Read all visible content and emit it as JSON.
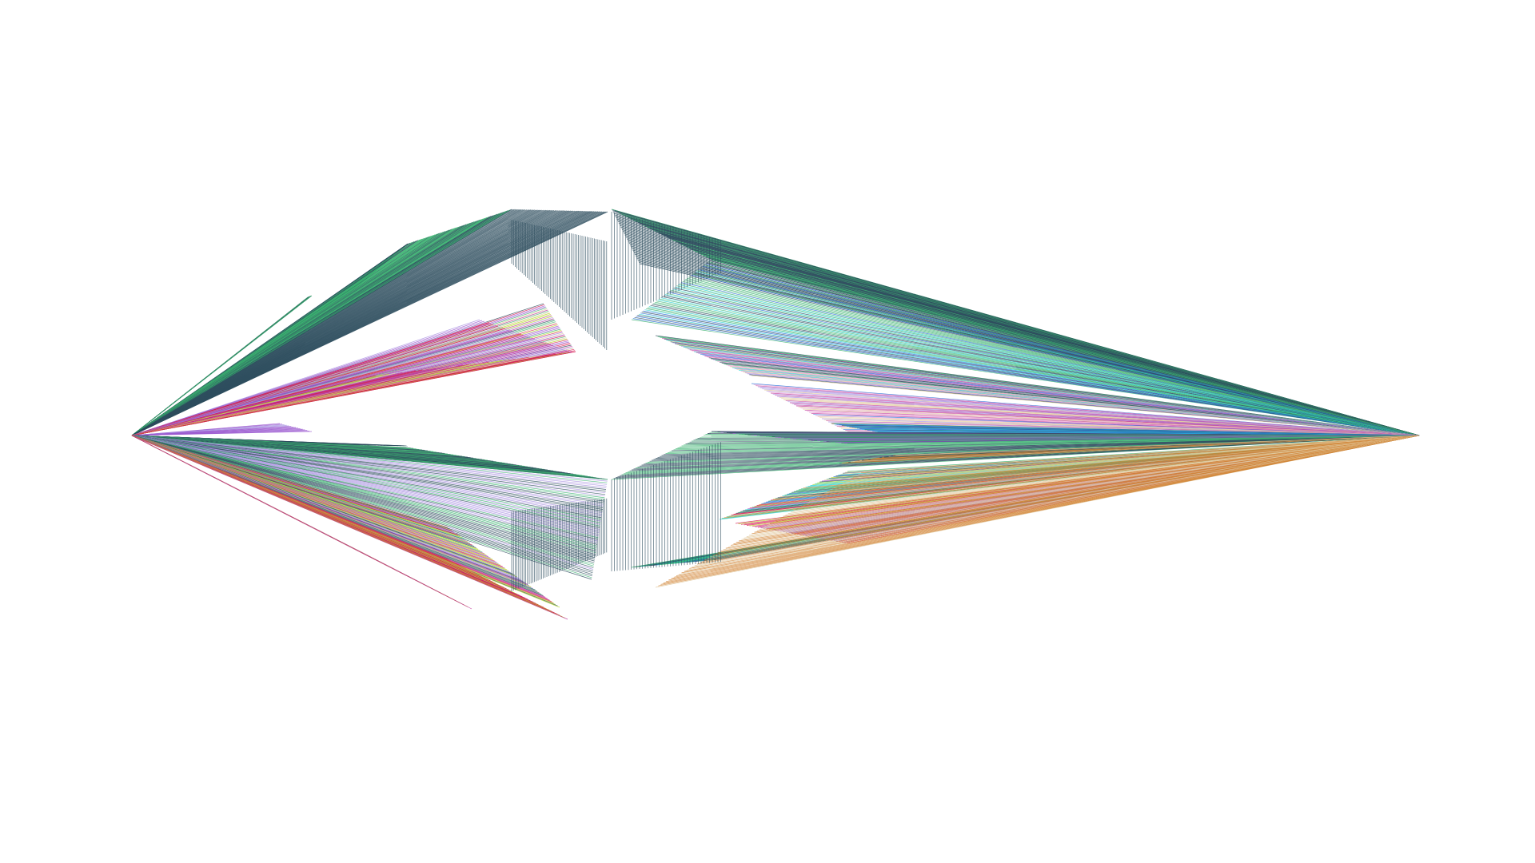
{
  "view": {
    "background": "#ffffff",
    "subject": "line-fan-arrowhead-visualization"
  },
  "palette": {
    "slate": "#2f4f5f",
    "green": "#3cb371",
    "purple": "#9b59d0",
    "magenta": "#c0399b",
    "crimson": "#d7164f",
    "orange": "#d2873a",
    "tan": "#e0c79a",
    "yellowgreen": "#b5d82a",
    "cyan": "#2ad4d4",
    "blue": "#2a6fd8",
    "lavender": "#a88fe0",
    "pink": "#e89ad0"
  },
  "fans": [
    {
      "name": "upper-left-fan",
      "colors": [
        "slate",
        "green",
        "purple",
        "magenta",
        "crimson",
        "tan",
        "lavender",
        "yellowgreen"
      ]
    },
    {
      "name": "lower-left-fan",
      "colors": [
        "slate",
        "green",
        "purple",
        "crimson",
        "orange",
        "yellowgreen",
        "magenta",
        "lavender"
      ]
    },
    {
      "name": "upper-right-fan",
      "colors": [
        "slate",
        "green",
        "cyan",
        "blue",
        "magenta",
        "tan",
        "pink",
        "lavender"
      ]
    },
    {
      "name": "lower-right-fan",
      "colors": [
        "slate",
        "green",
        "orange",
        "crimson",
        "purple",
        "blue",
        "yellowgreen",
        "tan",
        "cyan"
      ]
    }
  ]
}
